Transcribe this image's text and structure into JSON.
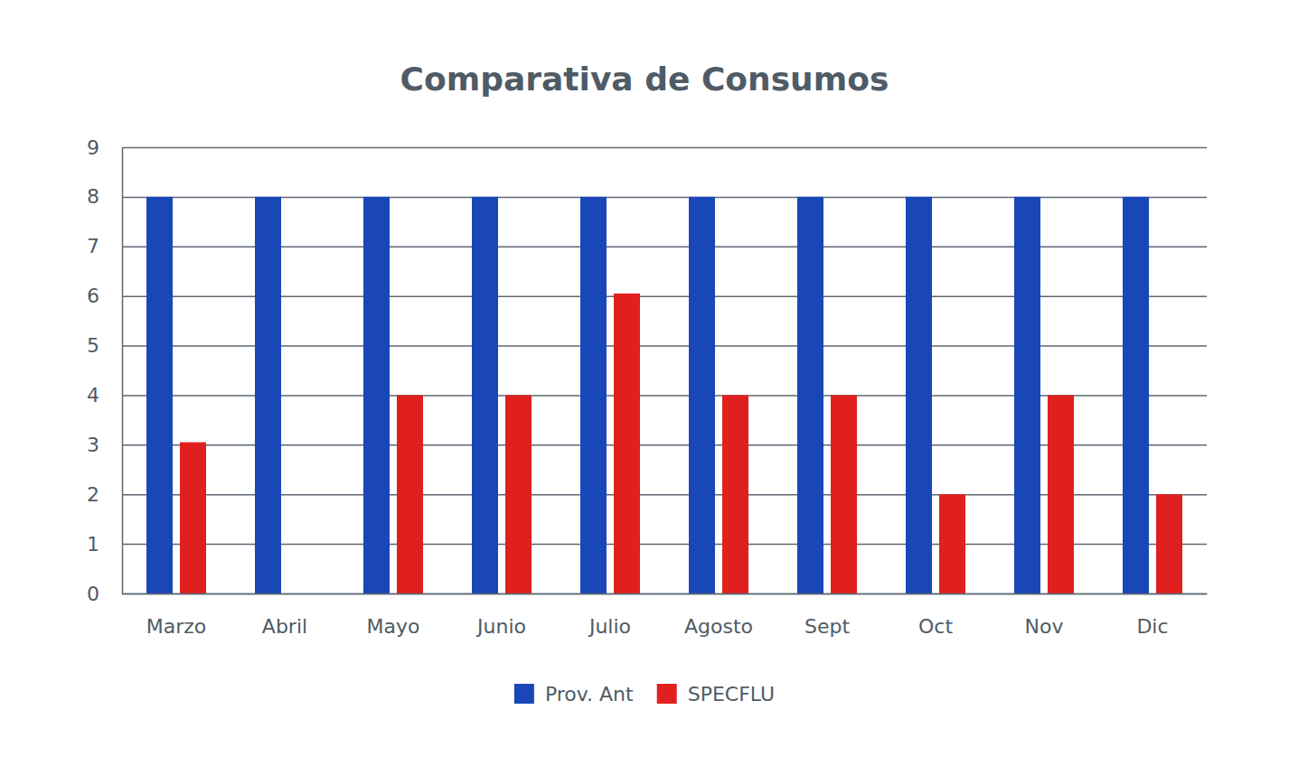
{
  "chart_data": {
    "type": "bar",
    "title": "Comparativa de Consumos",
    "categories": [
      "Marzo",
      "Abril",
      "Mayo",
      "Junio",
      "Julio",
      "Agosto",
      "Sept",
      "Oct",
      "Nov",
      "Dic"
    ],
    "series": [
      {
        "name": "Prov. Ant",
        "color": "#1a47b8",
        "values": [
          8,
          8,
          8,
          8,
          8,
          8,
          8,
          8,
          8,
          8
        ]
      },
      {
        "name": "SPECFLU",
        "color": "#e0201e",
        "values": [
          3.05,
          0,
          4,
          4,
          6.05,
          4,
          4,
          2,
          4,
          2
        ]
      }
    ],
    "ylim": [
      0,
      9
    ],
    "yticks": [
      0,
      1,
      2,
      3,
      4,
      5,
      6,
      7,
      8,
      9
    ],
    "grid": true,
    "legend": "bottom"
  }
}
